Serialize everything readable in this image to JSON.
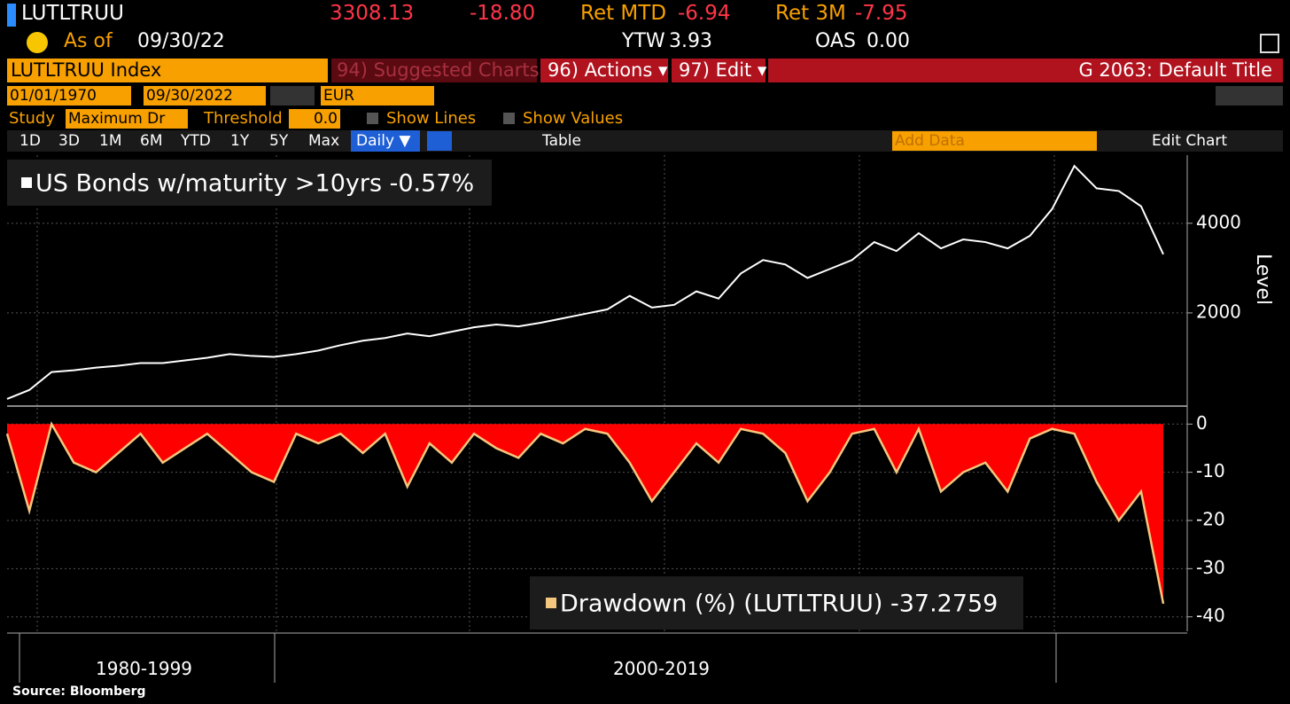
{
  "header": {
    "ticker": "LUTLTRUU",
    "price": "3308.13",
    "change": "-18.80",
    "ret_mtd_label": "Ret MTD",
    "ret_mtd": "-6.94",
    "ret_3m_label": "Ret 3M",
    "ret_3m": "-7.95",
    "as_of_label": "As of",
    "as_of": "09/30/22",
    "ytw_label": "YTW",
    "ytw": "3.93",
    "oas_label": "OAS",
    "oas": "0.00"
  },
  "menu": {
    "security": "LUTLTRUU Index",
    "suggested": "94) Suggested Charts",
    "actions": "96) Actions ▾",
    "edit": "97) Edit ▾",
    "title": "G 2063: Default Title"
  },
  "dates": {
    "start": "01/01/1970",
    "end": "09/30/2022",
    "currency": "EUR"
  },
  "study": {
    "label": "Study",
    "value": "Maximum Dr",
    "threshold_label": "Threshold",
    "threshold": "0.0",
    "show_lines": "Show Lines",
    "show_values": "Show Values"
  },
  "toolbar": {
    "ranges": [
      "1D",
      "3D",
      "1M",
      "6M",
      "YTD",
      "1Y",
      "5Y",
      "Max"
    ],
    "frequency": "Daily ▼",
    "table": "Table",
    "add_data": "Add Data",
    "edit_chart": "Edit Chart"
  },
  "chart_data": [
    {
      "type": "line",
      "categories": [
        null,
        null,
        null,
        null,
        null,
        null,
        null,
        null,
        null,
        null,
        null,
        null,
        null,
        null,
        null,
        null,
        null,
        null,
        null,
        null,
        null,
        null,
        null,
        null,
        null,
        null,
        null,
        null,
        null,
        null,
        null,
        null,
        null,
        null,
        null,
        null,
        null,
        null,
        null,
        null,
        null,
        null,
        null,
        null,
        null,
        null,
        null,
        null,
        null,
        null,
        null,
        null,
        null
      ],
      "series": [
        {
          "name": "US Bonds w/maturity >10yrs -0.57%",
          "color": "#ffffff",
          "values": [
            80,
            280,
            680,
            720,
            780,
            820,
            880,
            880,
            940,
            1000,
            1080,
            1040,
            1020,
            1080,
            1160,
            1280,
            1380,
            1440,
            1540,
            1480,
            1580,
            1680,
            1740,
            1700,
            1780,
            1880,
            1980,
            2080,
            2380,
            2120,
            2180,
            2480,
            2320,
            2880,
            3180,
            3080,
            2780,
            2980,
            3180,
            3580,
            3380,
            3780,
            3440,
            3640,
            3580,
            3440,
            3720,
            4320,
            5280,
            4780,
            4720,
            4380,
            3308
          ]
        }
      ],
      "ylim": [
        0,
        5520
      ],
      "yticks": [
        2000,
        4000
      ],
      "y_label": "Level",
      "grid": true
    },
    {
      "type": "area",
      "categories": [
        null,
        null,
        null,
        null,
        null,
        null,
        null,
        null,
        null,
        null,
        null,
        null,
        null,
        null,
        null,
        null,
        null,
        null,
        null,
        null,
        null,
        null,
        null,
        null,
        null,
        null,
        null,
        null,
        null,
        null,
        null,
        null,
        null,
        null,
        null,
        null,
        null,
        null,
        null,
        null,
        null,
        null,
        null,
        null,
        null,
        null,
        null,
        null,
        null,
        null,
        null,
        null,
        null
      ],
      "series": [
        {
          "name": "Drawdown (%) (LUTLTRUU) -37.2759",
          "color": "#f5c77e",
          "fill": "#ff0000",
          "values": [
            -2,
            -18,
            0,
            -8,
            -10,
            -6,
            -2,
            -8,
            -5,
            -2,
            -6,
            -10,
            -12,
            -2,
            -4,
            -2,
            -6,
            -2,
            -13,
            -4,
            -8,
            -2,
            -5,
            -7,
            -2,
            -4,
            -1,
            -2,
            -8,
            -16,
            -10,
            -4,
            -8,
            -1,
            -2,
            -6,
            -16,
            -10,
            -2,
            -1,
            -10,
            -1,
            -14,
            -10,
            -8,
            -14,
            -3,
            -1,
            -2,
            -12,
            -20,
            -14,
            -37.2759
          ]
        }
      ],
      "ylim": [
        -43,
        3
      ],
      "yticks": [
        0,
        -10,
        -20,
        -30,
        -40
      ],
      "grid": true
    }
  ],
  "x_groups": [
    "1980-1999",
    "2000-2019"
  ],
  "source": "Source: Bloomberg"
}
